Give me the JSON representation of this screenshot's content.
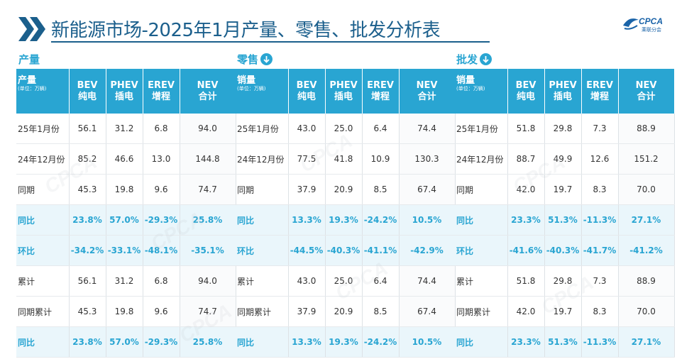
{
  "header": {
    "title": "新能源市场-2025年1月产量、零售、批发分析表",
    "logo_text": "CPCA",
    "logo_sub": "乘联分会"
  },
  "columns": {
    "bev": [
      "BEV",
      "纯电"
    ],
    "phev": [
      "PHEV",
      "插电"
    ],
    "erev": [
      "EREV",
      "增程"
    ],
    "nev": [
      "NEV",
      "合计"
    ],
    "unit": "(单位：万辆)"
  },
  "row_labels": [
    "25年1月份",
    "24年12月份",
    "同期",
    "同比",
    "环比",
    "累计",
    "同期累计",
    "同比"
  ],
  "panels": [
    {
      "label": "产量",
      "first_header": "产量",
      "rows": [
        [
          "56.1",
          "31.2",
          "6.8",
          "94.0"
        ],
        [
          "85.2",
          "46.6",
          "13.0",
          "144.8"
        ],
        [
          "45.3",
          "19.8",
          "9.6",
          "74.7"
        ],
        [
          "23.8%",
          "57.0%",
          "-29.3%",
          "25.8%"
        ],
        [
          "-34.2%",
          "-33.1%",
          "-48.1%",
          "-35.1%"
        ],
        [
          "56.1",
          "31.2",
          "6.8",
          "94.0"
        ],
        [
          "45.3",
          "19.8",
          "9.6",
          "74.7"
        ],
        [
          "23.8%",
          "57.0%",
          "-29.3%",
          "25.8%"
        ]
      ]
    },
    {
      "label": "零售",
      "first_header": "销量",
      "rows": [
        [
          "43.0",
          "25.0",
          "6.4",
          "74.4"
        ],
        [
          "77.5",
          "41.8",
          "10.9",
          "130.3"
        ],
        [
          "37.9",
          "20.9",
          "8.5",
          "67.4"
        ],
        [
          "13.3%",
          "19.3%",
          "-24.2%",
          "10.5%"
        ],
        [
          "-44.5%",
          "-40.3%",
          "-41.1%",
          "-42.9%"
        ],
        [
          "43.0",
          "25.0",
          "6.4",
          "74.4"
        ],
        [
          "37.9",
          "20.9",
          "8.5",
          "67.4"
        ],
        [
          "13.3%",
          "19.3%",
          "-24.2%",
          "10.5%"
        ]
      ]
    },
    {
      "label": "批发",
      "first_header": "销量",
      "rows": [
        [
          "51.8",
          "29.8",
          "7.3",
          "88.9"
        ],
        [
          "88.7",
          "49.9",
          "12.6",
          "151.2"
        ],
        [
          "42.0",
          "19.7",
          "8.3",
          "70.0"
        ],
        [
          "23.3%",
          "51.3%",
          "-11.3%",
          "27.1%"
        ],
        [
          "-41.6%",
          "-40.3%",
          "-41.7%",
          "-41.2%"
        ],
        [
          "51.8",
          "29.8",
          "7.3",
          "88.9"
        ],
        [
          "42.0",
          "19.7",
          "8.3",
          "70.0"
        ],
        [
          "23.3%",
          "51.3%",
          "-11.3%",
          "27.1%"
        ]
      ]
    }
  ]
}
